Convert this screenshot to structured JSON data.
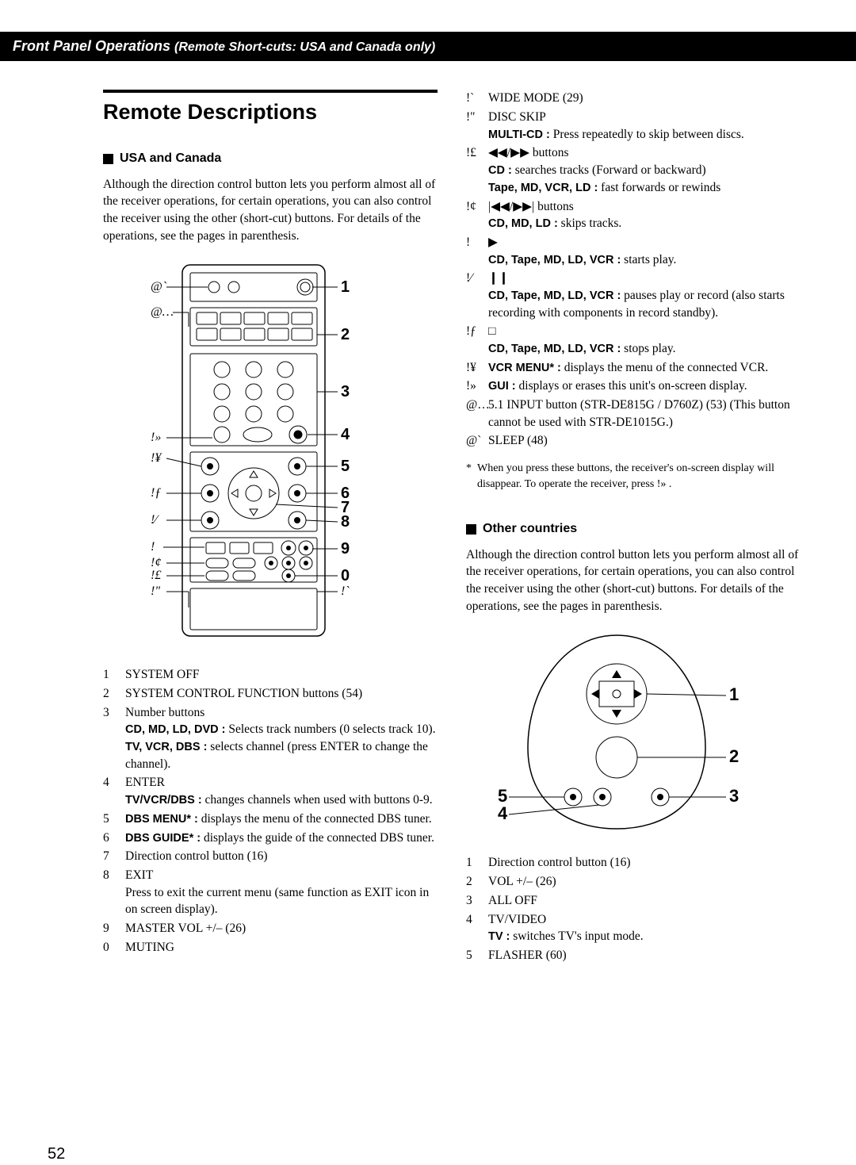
{
  "header": {
    "main": "Front Panel Operations",
    "sub": "(Remote Short-cuts: USA and Canada only)"
  },
  "h1": "Remote Descriptions",
  "usa": {
    "heading": "USA and Canada",
    "intro": "Although the direction control button lets you perform almost all of the receiver operations, for certain operations, you can also control the receiver using the other (short-cut) buttons. For details of the operations, see the pages in parenthesis.",
    "left_labels": [
      "@`",
      "@…",
      "!»",
      "!¥",
      "!ƒ",
      "!⁄",
      "!",
      "!¢",
      "!£",
      "!\""
    ],
    "right_labels": [
      "1",
      "2",
      "3",
      "4",
      "5",
      "6",
      "7",
      "8",
      "9",
      "0",
      "!`"
    ],
    "list": [
      {
        "n": "1",
        "lines": [
          {
            "t": "SYSTEM OFF"
          }
        ]
      },
      {
        "n": "2",
        "lines": [
          {
            "t": "SYSTEM CONTROL FUNCTION buttons (54)"
          }
        ]
      },
      {
        "n": "3",
        "lines": [
          {
            "t": "Number buttons"
          },
          {
            "b": "CD, MD, LD, DVD :",
            "t": " Selects track numbers (0 selects track 10)."
          },
          {
            "b": "TV, VCR, DBS :",
            "t": " selects channel (press ENTER to change the channel)."
          }
        ]
      },
      {
        "n": "4",
        "lines": [
          {
            "t": "ENTER"
          },
          {
            "b": "TV/VCR/DBS :",
            "t": " changes channels when used with buttons 0-9."
          }
        ]
      },
      {
        "n": "5",
        "lines": [
          {
            "b": "DBS MENU* :",
            "t": " displays the menu of the connected DBS tuner."
          }
        ]
      },
      {
        "n": "6",
        "lines": [
          {
            "b": "DBS GUIDE* :",
            "t": " displays the guide of the connected DBS tuner."
          }
        ]
      },
      {
        "n": "7",
        "lines": [
          {
            "t": "Direction control button (16)"
          }
        ]
      },
      {
        "n": "8",
        "lines": [
          {
            "t": "EXIT"
          },
          {
            "t": "Press to exit the current menu (same function as EXIT icon in on screen display)."
          }
        ]
      },
      {
        "n": "9",
        "lines": [
          {
            "t": "MASTER VOL +/– (26)"
          }
        ]
      },
      {
        "n": "0",
        "lines": [
          {
            "t": "MUTING"
          }
        ]
      }
    ]
  },
  "right": {
    "list": [
      {
        "n": "!`",
        "lines": [
          {
            "t": "WIDE MODE (29)"
          }
        ]
      },
      {
        "n": "!\"",
        "lines": [
          {
            "t": "DISC SKIP"
          },
          {
            "b": "MULTI-CD :",
            "t": " Press repeatedly to skip between discs."
          }
        ]
      },
      {
        "n": "!£",
        "lines": [
          {
            "sym": "rewff",
            "t": " buttons"
          },
          {
            "b": "CD :",
            "t": " searches tracks (Forward or backward)"
          },
          {
            "b": "Tape, MD, VCR, LD :",
            "t": " fast forwards or rewinds"
          }
        ]
      },
      {
        "n": "!¢",
        "lines": [
          {
            "sym": "prevnext",
            "t": " buttons"
          },
          {
            "b": "CD, MD, LD :",
            "t": " skips tracks."
          }
        ]
      },
      {
        "n": "!",
        "lines": [
          {
            "sym": "play",
            "t": ""
          },
          {
            "b": "CD, Tape, MD, LD, VCR :",
            "t": " starts play."
          }
        ]
      },
      {
        "n": "!⁄",
        "lines": [
          {
            "sym": "pause",
            "t": ""
          },
          {
            "b": "CD, Tape, MD, LD, VCR :",
            "t": " pauses play or record (also starts recording with components in record standby)."
          }
        ]
      },
      {
        "n": "!ƒ",
        "lines": [
          {
            "sym": "stop",
            "t": ""
          },
          {
            "b": "CD, Tape, MD, LD, VCR :",
            "t": " stops play."
          }
        ]
      },
      {
        "n": "!¥",
        "lines": [
          {
            "b": "VCR MENU* :",
            "t": " displays the menu of the connected VCR."
          }
        ]
      },
      {
        "n": "!»",
        "lines": [
          {
            "b": "GUI :",
            "t": " displays or erases this unit's on-screen display."
          }
        ]
      },
      {
        "n": "@…",
        "lines": [
          {
            "t": "5.1 INPUT button (STR-DE815G / D760Z) (53) (This button cannot be used with STR-DE1015G.)"
          }
        ]
      },
      {
        "n": "@`",
        "lines": [
          {
            "t": "SLEEP (48)"
          }
        ]
      }
    ],
    "footnote": "When you press these buttons, the receiver's on-screen display will disappear. To operate the receiver, press !» ."
  },
  "other": {
    "heading": "Other countries",
    "intro": "Although the direction control button lets you perform almost all of the receiver operations, for certain operations, you can also control the receiver using the other (short-cut) buttons. For details of the operations, see the pages in parenthesis.",
    "list": [
      {
        "n": "1",
        "lines": [
          {
            "t": "Direction control button (16)"
          }
        ]
      },
      {
        "n": "2",
        "lines": [
          {
            "t": "VOL +/– (26)"
          }
        ]
      },
      {
        "n": "3",
        "lines": [
          {
            "t": "ALL OFF"
          }
        ]
      },
      {
        "n": "4",
        "lines": [
          {
            "t": "TV/VIDEO"
          },
          {
            "b": "TV :",
            "t": " switches TV's input mode."
          }
        ]
      },
      {
        "n": "5",
        "lines": [
          {
            "t": "FLASHER (60)"
          }
        ]
      }
    ]
  },
  "page_number": "52"
}
